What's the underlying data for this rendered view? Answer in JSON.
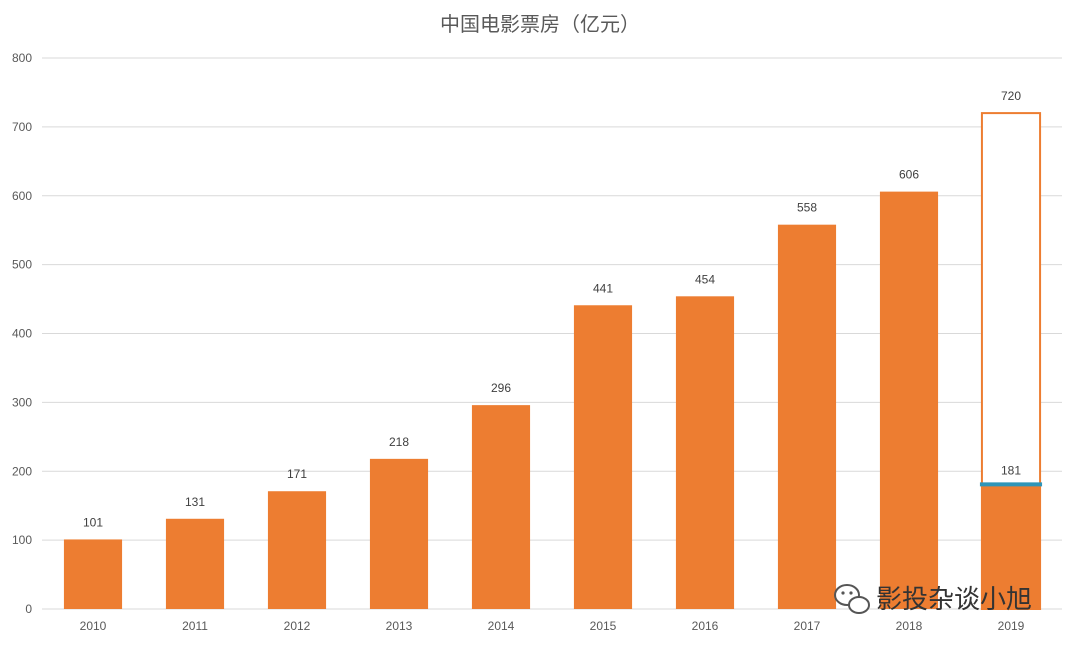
{
  "chart_data": {
    "type": "bar",
    "title": "中国电影票房（亿元）",
    "xlabel": "",
    "ylabel": "",
    "categories": [
      "2010",
      "2011",
      "2012",
      "2013",
      "2014",
      "2015",
      "2016",
      "2017",
      "2018",
      "2019"
    ],
    "values": [
      101,
      131,
      171,
      218,
      296,
      441,
      454,
      558,
      606,
      181
    ],
    "target_2019": 720,
    "ylim": [
      0,
      800
    ],
    "yticks": [
      0,
      100,
      200,
      300,
      400,
      500,
      600,
      700,
      800
    ],
    "grid": true,
    "legend": "none",
    "colors": {
      "bar": "#ED7D31",
      "marker": "#2E95B8",
      "grid": "#D9D9D9"
    }
  },
  "watermark": {
    "text": "影投杂谈小旭",
    "icon": "wechat-icon"
  }
}
